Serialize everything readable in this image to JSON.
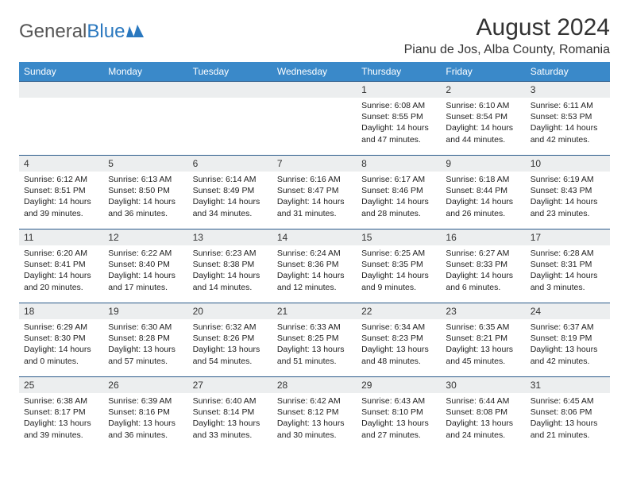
{
  "branding": {
    "name_part1": "General",
    "name_part2": "Blue"
  },
  "header": {
    "title": "August 2024",
    "location": "Pianu de Jos, Alba County, Romania"
  },
  "calendar": {
    "day_headers": [
      "Sunday",
      "Monday",
      "Tuesday",
      "Wednesday",
      "Thursday",
      "Friday",
      "Saturday"
    ],
    "header_bg": "#3a89c9",
    "header_fg": "#ffffff",
    "row_border": "#2a5a8a",
    "daynum_bg": "#eceeef",
    "weeks": [
      [
        null,
        null,
        null,
        null,
        {
          "d": "1",
          "sr": "Sunrise: 6:08 AM",
          "ss": "Sunset: 8:55 PM",
          "dl1": "Daylight: 14 hours",
          "dl2": "and 47 minutes."
        },
        {
          "d": "2",
          "sr": "Sunrise: 6:10 AM",
          "ss": "Sunset: 8:54 PM",
          "dl1": "Daylight: 14 hours",
          "dl2": "and 44 minutes."
        },
        {
          "d": "3",
          "sr": "Sunrise: 6:11 AM",
          "ss": "Sunset: 8:53 PM",
          "dl1": "Daylight: 14 hours",
          "dl2": "and 42 minutes."
        }
      ],
      [
        {
          "d": "4",
          "sr": "Sunrise: 6:12 AM",
          "ss": "Sunset: 8:51 PM",
          "dl1": "Daylight: 14 hours",
          "dl2": "and 39 minutes."
        },
        {
          "d": "5",
          "sr": "Sunrise: 6:13 AM",
          "ss": "Sunset: 8:50 PM",
          "dl1": "Daylight: 14 hours",
          "dl2": "and 36 minutes."
        },
        {
          "d": "6",
          "sr": "Sunrise: 6:14 AM",
          "ss": "Sunset: 8:49 PM",
          "dl1": "Daylight: 14 hours",
          "dl2": "and 34 minutes."
        },
        {
          "d": "7",
          "sr": "Sunrise: 6:16 AM",
          "ss": "Sunset: 8:47 PM",
          "dl1": "Daylight: 14 hours",
          "dl2": "and 31 minutes."
        },
        {
          "d": "8",
          "sr": "Sunrise: 6:17 AM",
          "ss": "Sunset: 8:46 PM",
          "dl1": "Daylight: 14 hours",
          "dl2": "and 28 minutes."
        },
        {
          "d": "9",
          "sr": "Sunrise: 6:18 AM",
          "ss": "Sunset: 8:44 PM",
          "dl1": "Daylight: 14 hours",
          "dl2": "and 26 minutes."
        },
        {
          "d": "10",
          "sr": "Sunrise: 6:19 AM",
          "ss": "Sunset: 8:43 PM",
          "dl1": "Daylight: 14 hours",
          "dl2": "and 23 minutes."
        }
      ],
      [
        {
          "d": "11",
          "sr": "Sunrise: 6:20 AM",
          "ss": "Sunset: 8:41 PM",
          "dl1": "Daylight: 14 hours",
          "dl2": "and 20 minutes."
        },
        {
          "d": "12",
          "sr": "Sunrise: 6:22 AM",
          "ss": "Sunset: 8:40 PM",
          "dl1": "Daylight: 14 hours",
          "dl2": "and 17 minutes."
        },
        {
          "d": "13",
          "sr": "Sunrise: 6:23 AM",
          "ss": "Sunset: 8:38 PM",
          "dl1": "Daylight: 14 hours",
          "dl2": "and 14 minutes."
        },
        {
          "d": "14",
          "sr": "Sunrise: 6:24 AM",
          "ss": "Sunset: 8:36 PM",
          "dl1": "Daylight: 14 hours",
          "dl2": "and 12 minutes."
        },
        {
          "d": "15",
          "sr": "Sunrise: 6:25 AM",
          "ss": "Sunset: 8:35 PM",
          "dl1": "Daylight: 14 hours",
          "dl2": "and 9 minutes."
        },
        {
          "d": "16",
          "sr": "Sunrise: 6:27 AM",
          "ss": "Sunset: 8:33 PM",
          "dl1": "Daylight: 14 hours",
          "dl2": "and 6 minutes."
        },
        {
          "d": "17",
          "sr": "Sunrise: 6:28 AM",
          "ss": "Sunset: 8:31 PM",
          "dl1": "Daylight: 14 hours",
          "dl2": "and 3 minutes."
        }
      ],
      [
        {
          "d": "18",
          "sr": "Sunrise: 6:29 AM",
          "ss": "Sunset: 8:30 PM",
          "dl1": "Daylight: 14 hours",
          "dl2": "and 0 minutes."
        },
        {
          "d": "19",
          "sr": "Sunrise: 6:30 AM",
          "ss": "Sunset: 8:28 PM",
          "dl1": "Daylight: 13 hours",
          "dl2": "and 57 minutes."
        },
        {
          "d": "20",
          "sr": "Sunrise: 6:32 AM",
          "ss": "Sunset: 8:26 PM",
          "dl1": "Daylight: 13 hours",
          "dl2": "and 54 minutes."
        },
        {
          "d": "21",
          "sr": "Sunrise: 6:33 AM",
          "ss": "Sunset: 8:25 PM",
          "dl1": "Daylight: 13 hours",
          "dl2": "and 51 minutes."
        },
        {
          "d": "22",
          "sr": "Sunrise: 6:34 AM",
          "ss": "Sunset: 8:23 PM",
          "dl1": "Daylight: 13 hours",
          "dl2": "and 48 minutes."
        },
        {
          "d": "23",
          "sr": "Sunrise: 6:35 AM",
          "ss": "Sunset: 8:21 PM",
          "dl1": "Daylight: 13 hours",
          "dl2": "and 45 minutes."
        },
        {
          "d": "24",
          "sr": "Sunrise: 6:37 AM",
          "ss": "Sunset: 8:19 PM",
          "dl1": "Daylight: 13 hours",
          "dl2": "and 42 minutes."
        }
      ],
      [
        {
          "d": "25",
          "sr": "Sunrise: 6:38 AM",
          "ss": "Sunset: 8:17 PM",
          "dl1": "Daylight: 13 hours",
          "dl2": "and 39 minutes."
        },
        {
          "d": "26",
          "sr": "Sunrise: 6:39 AM",
          "ss": "Sunset: 8:16 PM",
          "dl1": "Daylight: 13 hours",
          "dl2": "and 36 minutes."
        },
        {
          "d": "27",
          "sr": "Sunrise: 6:40 AM",
          "ss": "Sunset: 8:14 PM",
          "dl1": "Daylight: 13 hours",
          "dl2": "and 33 minutes."
        },
        {
          "d": "28",
          "sr": "Sunrise: 6:42 AM",
          "ss": "Sunset: 8:12 PM",
          "dl1": "Daylight: 13 hours",
          "dl2": "and 30 minutes."
        },
        {
          "d": "29",
          "sr": "Sunrise: 6:43 AM",
          "ss": "Sunset: 8:10 PM",
          "dl1": "Daylight: 13 hours",
          "dl2": "and 27 minutes."
        },
        {
          "d": "30",
          "sr": "Sunrise: 6:44 AM",
          "ss": "Sunset: 8:08 PM",
          "dl1": "Daylight: 13 hours",
          "dl2": "and 24 minutes."
        },
        {
          "d": "31",
          "sr": "Sunrise: 6:45 AM",
          "ss": "Sunset: 8:06 PM",
          "dl1": "Daylight: 13 hours",
          "dl2": "and 21 minutes."
        }
      ]
    ]
  }
}
